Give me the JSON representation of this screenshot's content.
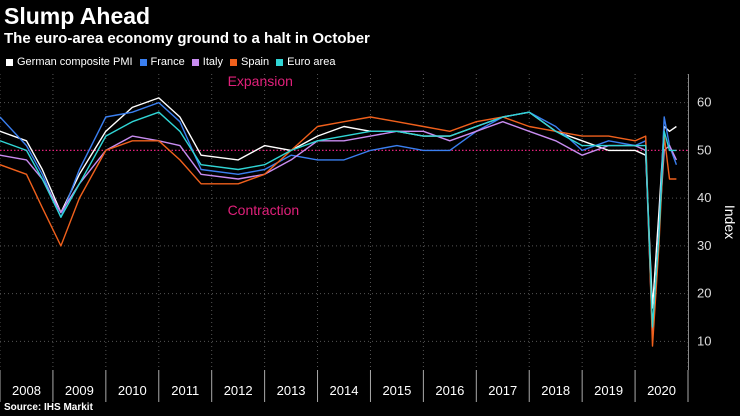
{
  "header": {
    "title": "Slump Ahead",
    "subtitle": "The euro-area economy ground to a halt in October"
  },
  "legend": [
    {
      "label": "German composite PMI",
      "color": "#ffffff"
    },
    {
      "label": "France",
      "color": "#3a7ff0"
    },
    {
      "label": "Italy",
      "color": "#c88cf0"
    },
    {
      "label": "Spain",
      "color": "#f0601c"
    },
    {
      "label": "Euro area",
      "color": "#30d5d5"
    }
  ],
  "footer": {
    "source": "Source: IHS Markit"
  },
  "chart_data": {
    "type": "line",
    "title": "Slump Ahead",
    "subtitle": "The euro-area economy ground to a halt in October",
    "xlabel": "",
    "ylabel": "Index",
    "ylim": [
      4,
      66
    ],
    "xlim": [
      2008.0,
      2021.0
    ],
    "yticks": [
      10,
      20,
      30,
      40,
      50,
      60
    ],
    "xticks": [
      "2008",
      "2009",
      "2010",
      "2011",
      "2012",
      "2013",
      "2014",
      "2015",
      "2016",
      "2017",
      "2018",
      "2019",
      "2020"
    ],
    "reference_line": {
      "y": 50,
      "color": "#e0207a",
      "style": "dotted"
    },
    "annotations": [
      {
        "text": "Expansion",
        "x": 2012.3,
        "y": 63.5,
        "color": "#e0207a"
      },
      {
        "text": "Contraction",
        "x": 2012.3,
        "y": 36.5,
        "color": "#e0207a"
      }
    ],
    "x": [
      2008.0,
      2008.5,
      2008.8,
      2009.15,
      2009.5,
      2010.0,
      2010.5,
      2011.0,
      2011.4,
      2011.8,
      2012.5,
      2013.0,
      2013.5,
      2014.0,
      2014.5,
      2015.0,
      2015.5,
      2016.0,
      2016.5,
      2017.0,
      2017.5,
      2018.0,
      2018.5,
      2019.0,
      2019.5,
      2020.0,
      2020.2,
      2020.33,
      2020.45,
      2020.55,
      2020.65,
      2020.78
    ],
    "series": [
      {
        "name": "German composite PMI",
        "color": "#ffffff",
        "values": [
          54,
          52,
          46,
          37,
          45,
          54,
          59,
          61,
          57,
          49,
          48,
          51,
          50,
          53,
          55,
          54,
          54,
          53,
          53,
          55,
          57,
          58,
          54,
          52,
          50,
          50,
          49,
          17,
          37,
          55,
          54,
          55
        ]
      },
      {
        "name": "France",
        "color": "#3a7ff0",
        "values": [
          57,
          51,
          45,
          36,
          46,
          57,
          58,
          60,
          56,
          46,
          45,
          46,
          49,
          48,
          48,
          50,
          51,
          50,
          50,
          54,
          57,
          58,
          55,
          50,
          52,
          51,
          52,
          11,
          32,
          57,
          51,
          47
        ]
      },
      {
        "name": "Italy",
        "color": "#c88cf0",
        "values": [
          49,
          48,
          44,
          37,
          43,
          50,
          53,
          52,
          51,
          45,
          44,
          45,
          48,
          52,
          52,
          53,
          54,
          54,
          52,
          54,
          56,
          54,
          52,
          49,
          51,
          51,
          50,
          11,
          33,
          50,
          51,
          48
        ]
      },
      {
        "name": "Spain",
        "color": "#f0601c",
        "values": [
          47,
          45,
          38,
          30,
          40,
          50,
          52,
          52,
          48,
          43,
          43,
          45,
          50,
          55,
          56,
          57,
          56,
          55,
          54,
          56,
          57,
          55,
          54,
          53,
          53,
          52,
          53,
          9,
          30,
          53,
          44,
          44
        ]
      },
      {
        "name": "Euro area",
        "color": "#30d5d5",
        "values": [
          52,
          50,
          44,
          36,
          43,
          53,
          56,
          58,
          54,
          47,
          46,
          47,
          50,
          52,
          53,
          54,
          54,
          53,
          53,
          55,
          57,
          58,
          54,
          51,
          51,
          51,
          51,
          13,
          32,
          54,
          50,
          50
        ]
      }
    ]
  }
}
